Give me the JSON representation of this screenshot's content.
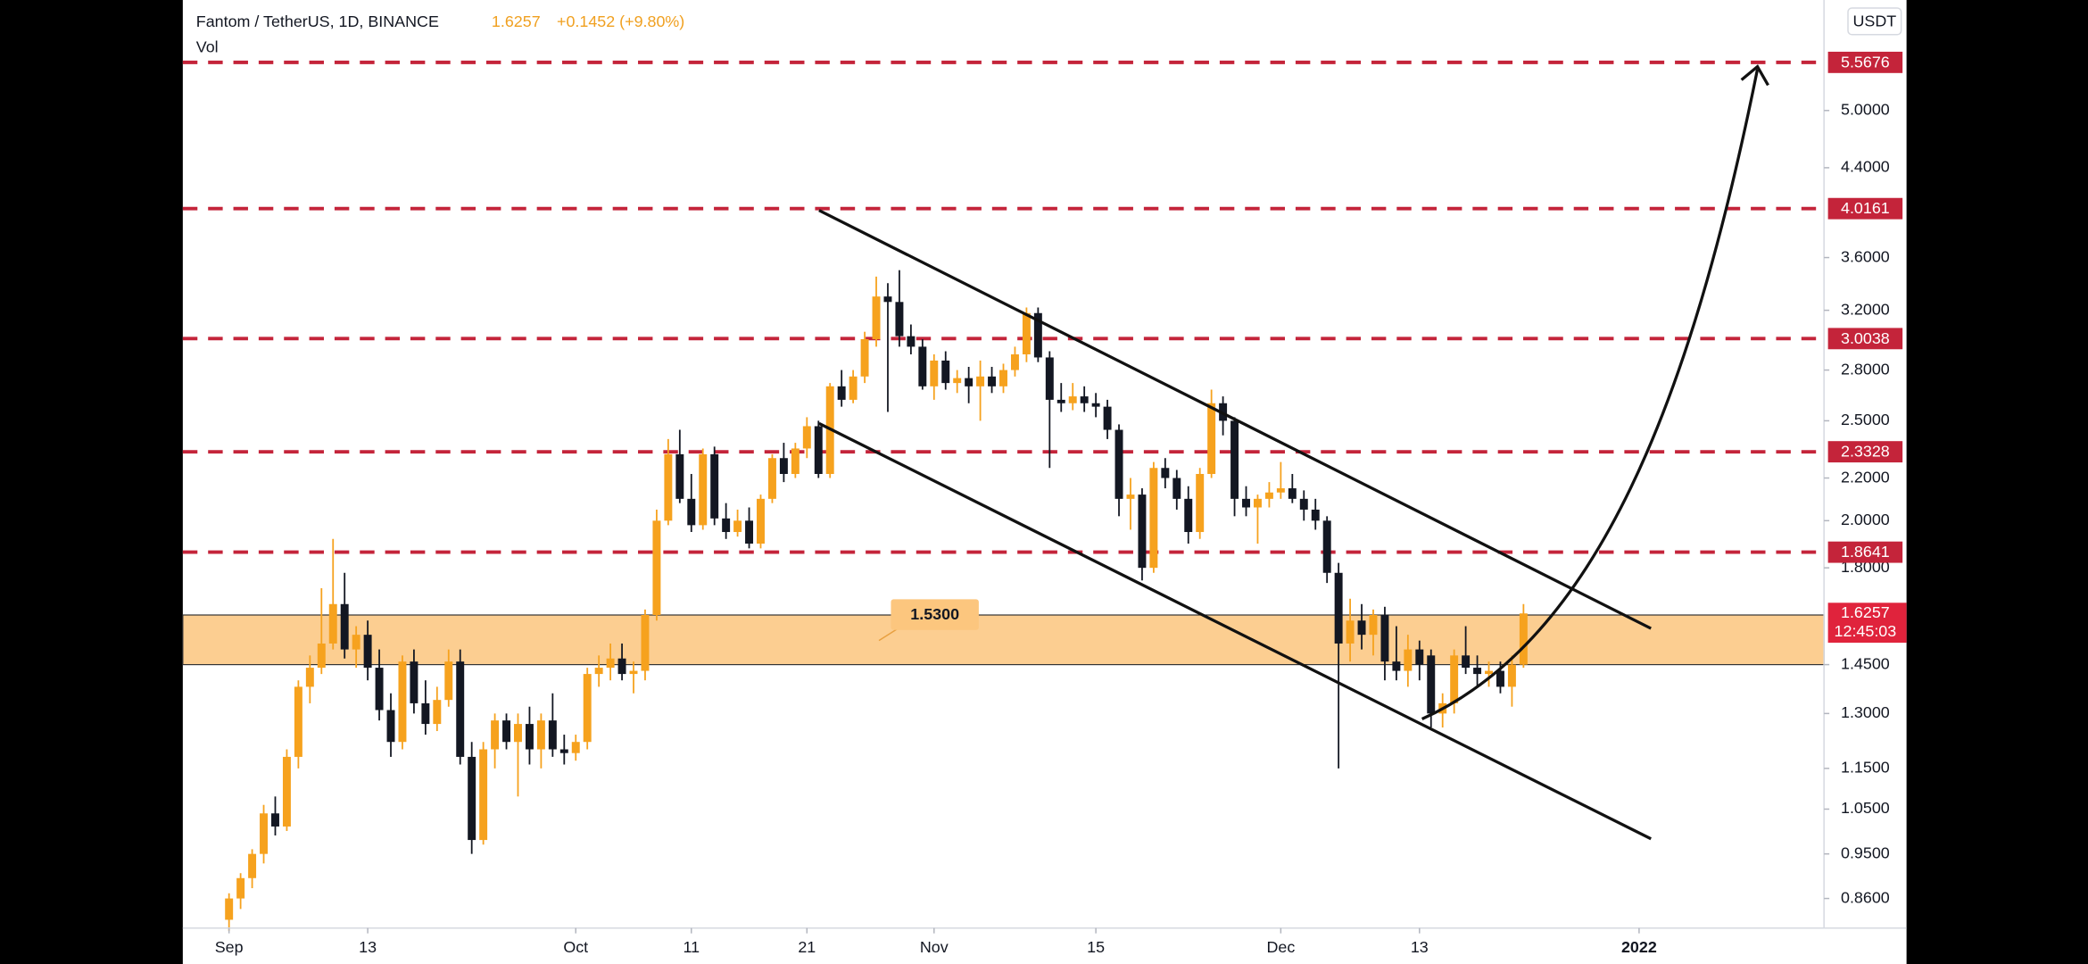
{
  "chart_data": {
    "type": "candlestick",
    "title": "Fantom / TetherUS, 1D, BINANCE",
    "last_price": 1.6257,
    "price_change": "+0.1452 (+9.80%)",
    "volume_label": "Vol",
    "currency": "USDT",
    "countdown": "12:45:03",
    "log_scale": true,
    "up_color": "#f6a21e",
    "down_color": "#131722",
    "level_color": "#c4243a",
    "zone_color": "#fcc67e",
    "xlim": [
      -4,
      138
    ],
    "xticks": [
      {
        "value": 0,
        "label": "Sep"
      },
      {
        "value": 12,
        "label": "13"
      },
      {
        "value": 30,
        "label": "Oct"
      },
      {
        "value": 40,
        "label": "11"
      },
      {
        "value": 50,
        "label": "21"
      },
      {
        "value": 61,
        "label": "Nov"
      },
      {
        "value": 75,
        "label": "15"
      },
      {
        "value": 91,
        "label": "Dec"
      },
      {
        "value": 103,
        "label": "13"
      },
      {
        "value": 122,
        "label": "2022"
      }
    ],
    "ylim": [
      0.805,
      6.4
    ],
    "yticks": [
      {
        "value": 0.86,
        "label": "0.8600"
      },
      {
        "value": 0.95,
        "label": "0.9500"
      },
      {
        "value": 1.05,
        "label": "1.0500"
      },
      {
        "value": 1.15,
        "label": "1.1500"
      },
      {
        "value": 1.3,
        "label": "1.3000"
      },
      {
        "value": 1.45,
        "label": "1.4500"
      },
      {
        "value": 1.8,
        "label": "1.8000"
      },
      {
        "value": 2.0,
        "label": "2.0000"
      },
      {
        "value": 2.2,
        "label": "2.2000"
      },
      {
        "value": 2.5,
        "label": "2.5000"
      },
      {
        "value": 2.8,
        "label": "2.8000"
      },
      {
        "value": 3.2,
        "label": "3.2000"
      },
      {
        "value": 3.6,
        "label": "3.6000"
      },
      {
        "value": 4.4,
        "label": "4.4000"
      },
      {
        "value": 5.0,
        "label": "5.0000"
      }
    ],
    "levels": [
      5.5676,
      4.0161,
      3.0038,
      2.3328,
      1.8641
    ],
    "zone": [
      1.45,
      1.62
    ],
    "zone_label": {
      "value": 1.53,
      "label": "1.5300"
    },
    "candles": [
      [
        0.82,
        0.87,
        0.8,
        0.86
      ],
      [
        0.86,
        0.91,
        0.84,
        0.9
      ],
      [
        0.9,
        0.96,
        0.88,
        0.95
      ],
      [
        0.95,
        1.06,
        0.93,
        1.04
      ],
      [
        1.04,
        1.08,
        0.99,
        1.01
      ],
      [
        1.01,
        1.2,
        1.0,
        1.18
      ],
      [
        1.18,
        1.4,
        1.15,
        1.38
      ],
      [
        1.38,
        1.48,
        1.33,
        1.44
      ],
      [
        1.44,
        1.72,
        1.42,
        1.52
      ],
      [
        1.52,
        1.92,
        1.5,
        1.66
      ],
      [
        1.66,
        1.78,
        1.47,
        1.5
      ],
      [
        1.5,
        1.58,
        1.44,
        1.55
      ],
      [
        1.55,
        1.6,
        1.4,
        1.44
      ],
      [
        1.44,
        1.5,
        1.28,
        1.31
      ],
      [
        1.31,
        1.36,
        1.18,
        1.22
      ],
      [
        1.22,
        1.48,
        1.2,
        1.46
      ],
      [
        1.46,
        1.5,
        1.3,
        1.33
      ],
      [
        1.33,
        1.4,
        1.24,
        1.27
      ],
      [
        1.27,
        1.38,
        1.25,
        1.34
      ],
      [
        1.34,
        1.5,
        1.32,
        1.46
      ],
      [
        1.46,
        1.5,
        1.16,
        1.18
      ],
      [
        1.18,
        1.22,
        0.95,
        0.98
      ],
      [
        0.98,
        1.22,
        0.97,
        1.2
      ],
      [
        1.2,
        1.3,
        1.15,
        1.28
      ],
      [
        1.28,
        1.3,
        1.2,
        1.22
      ],
      [
        1.22,
        1.3,
        1.08,
        1.27
      ],
      [
        1.27,
        1.32,
        1.16,
        1.2
      ],
      [
        1.2,
        1.3,
        1.15,
        1.28
      ],
      [
        1.28,
        1.36,
        1.18,
        1.2
      ],
      [
        1.2,
        1.24,
        1.16,
        1.19
      ],
      [
        1.19,
        1.24,
        1.17,
        1.22
      ],
      [
        1.22,
        1.44,
        1.2,
        1.42
      ],
      [
        1.42,
        1.48,
        1.38,
        1.44
      ],
      [
        1.44,
        1.52,
        1.4,
        1.47
      ],
      [
        1.47,
        1.52,
        1.4,
        1.42
      ],
      [
        1.42,
        1.46,
        1.36,
        1.43
      ],
      [
        1.43,
        1.64,
        1.4,
        1.62
      ],
      [
        1.62,
        2.05,
        1.6,
        2.0
      ],
      [
        2.0,
        2.4,
        1.98,
        2.32
      ],
      [
        2.32,
        2.45,
        2.08,
        2.1
      ],
      [
        2.1,
        2.22,
        1.95,
        1.98
      ],
      [
        1.98,
        2.35,
        1.96,
        2.32
      ],
      [
        2.32,
        2.36,
        1.98,
        2.01
      ],
      [
        2.01,
        2.08,
        1.92,
        1.95
      ],
      [
        1.95,
        2.05,
        1.93,
        2.0
      ],
      [
        2.0,
        2.06,
        1.88,
        1.9
      ],
      [
        1.9,
        2.12,
        1.88,
        2.1
      ],
      [
        2.1,
        2.32,
        2.08,
        2.3
      ],
      [
        2.3,
        2.38,
        2.18,
        2.22
      ],
      [
        2.22,
        2.38,
        2.2,
        2.35
      ],
      [
        2.35,
        2.52,
        2.3,
        2.47
      ],
      [
        2.47,
        2.5,
        2.2,
        2.22
      ],
      [
        2.22,
        2.72,
        2.2,
        2.7
      ],
      [
        2.7,
        2.8,
        2.58,
        2.62
      ],
      [
        2.62,
        2.8,
        2.6,
        2.76
      ],
      [
        2.76,
        3.05,
        2.72,
        3.0
      ],
      [
        3.0,
        3.45,
        2.95,
        3.3
      ],
      [
        3.3,
        3.4,
        2.55,
        3.26
      ],
      [
        3.26,
        3.5,
        2.95,
        3.02
      ],
      [
        3.02,
        3.1,
        2.9,
        2.95
      ],
      [
        2.95,
        3.0,
        2.68,
        2.7
      ],
      [
        2.7,
        2.9,
        2.62,
        2.86
      ],
      [
        2.86,
        2.92,
        2.68,
        2.72
      ],
      [
        2.72,
        2.8,
        2.66,
        2.75
      ],
      [
        2.75,
        2.82,
        2.6,
        2.7
      ],
      [
        2.7,
        2.86,
        2.5,
        2.76
      ],
      [
        2.76,
        2.82,
        2.66,
        2.7
      ],
      [
        2.7,
        2.84,
        2.66,
        2.8
      ],
      [
        2.8,
        2.95,
        2.76,
        2.9
      ],
      [
        2.9,
        3.22,
        2.85,
        3.18
      ],
      [
        3.18,
        3.22,
        2.85,
        2.88
      ],
      [
        2.88,
        2.92,
        2.25,
        2.62
      ],
      [
        2.62,
        2.72,
        2.55,
        2.6
      ],
      [
        2.6,
        2.72,
        2.56,
        2.64
      ],
      [
        2.64,
        2.7,
        2.55,
        2.6
      ],
      [
        2.6,
        2.66,
        2.52,
        2.58
      ],
      [
        2.58,
        2.62,
        2.4,
        2.45
      ],
      [
        2.45,
        2.48,
        2.02,
        2.1
      ],
      [
        2.1,
        2.2,
        1.96,
        2.12
      ],
      [
        2.12,
        2.15,
        1.75,
        1.8
      ],
      [
        1.8,
        2.28,
        1.78,
        2.25
      ],
      [
        2.25,
        2.3,
        2.15,
        2.2
      ],
      [
        2.2,
        2.24,
        2.05,
        2.1
      ],
      [
        2.1,
        2.16,
        1.9,
        1.95
      ],
      [
        1.95,
        2.25,
        1.92,
        2.22
      ],
      [
        2.22,
        2.68,
        2.2,
        2.6
      ],
      [
        2.6,
        2.64,
        2.42,
        2.5
      ],
      [
        2.5,
        2.52,
        2.02,
        2.1
      ],
      [
        2.1,
        2.16,
        2.02,
        2.06
      ],
      [
        2.06,
        2.12,
        1.9,
        2.1
      ],
      [
        2.1,
        2.18,
        2.06,
        2.13
      ],
      [
        2.13,
        2.28,
        2.1,
        2.15
      ],
      [
        2.15,
        2.22,
        2.08,
        2.1
      ],
      [
        2.1,
        2.14,
        2.0,
        2.05
      ],
      [
        2.05,
        2.1,
        1.96,
        2.0
      ],
      [
        2.0,
        2.02,
        1.74,
        1.78
      ],
      [
        1.78,
        1.82,
        1.15,
        1.52
      ],
      [
        1.52,
        1.68,
        1.46,
        1.6
      ],
      [
        1.6,
        1.66,
        1.5,
        1.55
      ],
      [
        1.55,
        1.64,
        1.48,
        1.62
      ],
      [
        1.62,
        1.65,
        1.4,
        1.46
      ],
      [
        1.46,
        1.58,
        1.4,
        1.43
      ],
      [
        1.43,
        1.55,
        1.38,
        1.5
      ],
      [
        1.5,
        1.53,
        1.4,
        1.45
      ],
      [
        1.48,
        1.5,
        1.26,
        1.3
      ],
      [
        1.3,
        1.36,
        1.26,
        1.33
      ],
      [
        1.33,
        1.5,
        1.3,
        1.48
      ],
      [
        1.48,
        1.58,
        1.42,
        1.44
      ],
      [
        1.44,
        1.48,
        1.38,
        1.42
      ],
      [
        1.42,
        1.46,
        1.38,
        1.43
      ],
      [
        1.43,
        1.46,
        1.36,
        1.38
      ],
      [
        1.38,
        1.48,
        1.32,
        1.45
      ],
      [
        1.45,
        1.66,
        1.44,
        1.6257
      ]
    ]
  }
}
